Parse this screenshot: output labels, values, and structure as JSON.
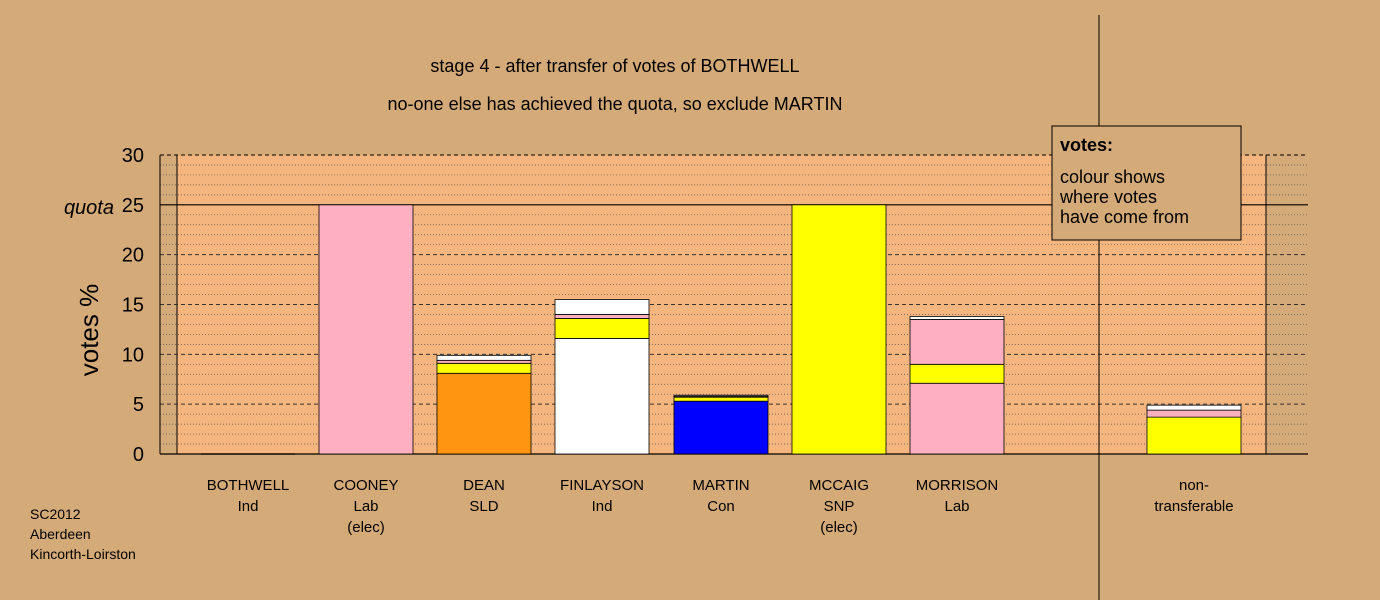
{
  "chart_data": {
    "type": "bar",
    "title": "stage 4 - after transfer of votes of BOTHWELL",
    "subtitle": "no-one else has achieved the quota, so exclude MARTIN",
    "ylabel": "votes %",
    "ylim": [
      0,
      30
    ],
    "yticks": [
      0,
      5,
      10,
      15,
      20,
      25,
      30
    ],
    "quota": 25,
    "quota_label": "quota",
    "legend": {
      "position": "top-right",
      "title": "votes:",
      "lines": [
        "colour shows",
        "where votes",
        "have come from"
      ]
    },
    "colors": {
      "BOTHWELL": "#ffffff",
      "COONEY": "#ffb0c0",
      "DEAN": "#ff9510",
      "FINLAYSON": "#ffffff",
      "MARTIN": "#0000ff",
      "MCCAIG": "#ffff00",
      "MORRISON": "#ffb0c0",
      "plot_bg": "#f5b57e",
      "page_bg": "#d4aa78"
    },
    "categories": [
      {
        "name": "BOTHWELL",
        "lines": [
          "BOTHWELL",
          "Ind"
        ],
        "segments": []
      },
      {
        "name": "COONEY",
        "lines": [
          "COONEY",
          "Lab",
          "(elec)"
        ],
        "segments": [
          {
            "from": "COONEY",
            "value": 25
          }
        ]
      },
      {
        "name": "DEAN",
        "lines": [
          "DEAN",
          "SLD"
        ],
        "segments": [
          {
            "from": "DEAN",
            "value": 8.1
          },
          {
            "from": "MCCAIG",
            "value": 1.0
          },
          {
            "from": "COONEY",
            "value": 0.3
          },
          {
            "from": "BOTHWELL",
            "value": 0.5
          }
        ]
      },
      {
        "name": "FINLAYSON",
        "lines": [
          "FINLAYSON",
          "Ind"
        ],
        "segments": [
          {
            "from": "FINLAYSON",
            "value": 11.6
          },
          {
            "from": "MCCAIG",
            "value": 2.0
          },
          {
            "from": "COONEY",
            "value": 0.4
          },
          {
            "from": "BOTHWELL",
            "value": 1.5
          }
        ]
      },
      {
        "name": "MARTIN",
        "lines": [
          "MARTIN",
          "Con"
        ],
        "segments": [
          {
            "from": "MARTIN",
            "value": 5.3
          },
          {
            "from": "MCCAIG",
            "value": 0.4
          },
          {
            "from": "COONEY",
            "value": 0.1
          },
          {
            "from": "BOTHWELL",
            "value": 0.1
          }
        ]
      },
      {
        "name": "MCCAIG",
        "lines": [
          "MCCAIG",
          "SNP",
          "(elec)"
        ],
        "segments": [
          {
            "from": "MCCAIG",
            "value": 25
          }
        ]
      },
      {
        "name": "MORRISON",
        "lines": [
          "MORRISON",
          "Lab"
        ],
        "segments": [
          {
            "from": "MORRISON",
            "value": 7.1
          },
          {
            "from": "MCCAIG",
            "value": 1.9
          },
          {
            "from": "COONEY",
            "value": 4.5
          },
          {
            "from": "BOTHWELL",
            "value": 0.3
          }
        ]
      },
      {
        "name": "non-transferable",
        "lines": [
          "non-",
          "transferable"
        ],
        "segments": [
          {
            "from": "MCCAIG",
            "value": 3.7
          },
          {
            "from": "COONEY",
            "value": 0.7
          },
          {
            "from": "BOTHWELL",
            "value": 0.5
          }
        ]
      }
    ]
  },
  "footer": {
    "lines": [
      "SC2012",
      "Aberdeen",
      "Kincorth-Loirston"
    ]
  }
}
